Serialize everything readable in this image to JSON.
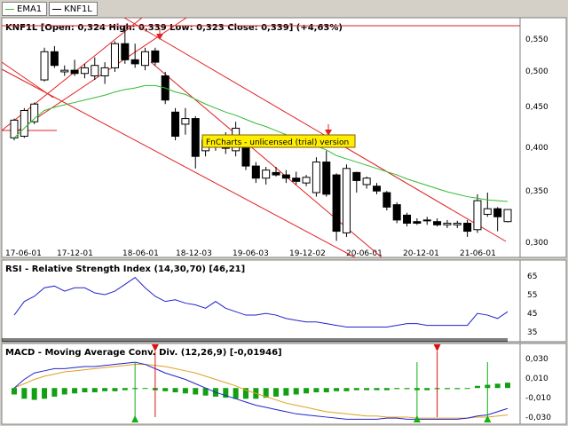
{
  "legend": [
    {
      "label": "EMA1",
      "color": "#33bb33"
    },
    {
      "label": "KNF1L",
      "color": "#000000"
    }
  ],
  "banner": "FnCharts - unlicensed (trial) version",
  "colors": {
    "ema": "#33bb33",
    "channel": "#e02020",
    "rsi": "#2222cc",
    "macd_signal": "#e0a020",
    "macd_hist": "#12a012",
    "marker_up": "#12b012",
    "marker_down": "#dd1010"
  },
  "chart_data": [
    {
      "type": "candlestick",
      "title": "KNF1L [Open: 0,324  High: 0,339  Low: 0,323  Close: 0,339] (+4,63%)",
      "ylim": [
        0.295,
        0.575
      ],
      "y_ticks": [
        "0,550",
        "0,500",
        "0,450",
        "0,400",
        "0,350",
        "0,300"
      ],
      "x_ticks": [
        "17-06-01",
        "17-12-01",
        "18-06-01",
        "18-12-03",
        "19-06-03",
        "19-12-02",
        "20-06-01",
        "20-12-01",
        "21-06-01"
      ],
      "candles": [
        {
          "o": 0.428,
          "h": 0.452,
          "l": 0.425,
          "c": 0.45
        },
        {
          "o": 0.43,
          "h": 0.465,
          "l": 0.428,
          "c": 0.462
        },
        {
          "o": 0.448,
          "h": 0.472,
          "l": 0.445,
          "c": 0.47
        },
        {
          "o": 0.5,
          "h": 0.54,
          "l": 0.498,
          "c": 0.535
        },
        {
          "o": 0.535,
          "h": 0.542,
          "l": 0.515,
          "c": 0.518
        },
        {
          "o": 0.51,
          "h": 0.518,
          "l": 0.505,
          "c": 0.512
        },
        {
          "o": 0.512,
          "h": 0.525,
          "l": 0.505,
          "c": 0.508
        },
        {
          "o": 0.508,
          "h": 0.52,
          "l": 0.502,
          "c": 0.515
        },
        {
          "o": 0.505,
          "h": 0.528,
          "l": 0.5,
          "c": 0.518
        },
        {
          "o": 0.505,
          "h": 0.522,
          "l": 0.495,
          "c": 0.515
        },
        {
          "o": 0.515,
          "h": 0.548,
          "l": 0.51,
          "c": 0.545
        },
        {
          "o": 0.545,
          "h": 0.568,
          "l": 0.52,
          "c": 0.525
        },
        {
          "o": 0.525,
          "h": 0.545,
          "l": 0.515,
          "c": 0.52
        },
        {
          "o": 0.518,
          "h": 0.54,
          "l": 0.512,
          "c": 0.535
        },
        {
          "o": 0.536,
          "h": 0.54,
          "l": 0.518,
          "c": 0.522
        },
        {
          "o": 0.505,
          "h": 0.51,
          "l": 0.47,
          "c": 0.475
        },
        {
          "o": 0.46,
          "h": 0.465,
          "l": 0.425,
          "c": 0.43
        },
        {
          "o": 0.445,
          "h": 0.465,
          "l": 0.432,
          "c": 0.452
        },
        {
          "o": 0.452,
          "h": 0.455,
          "l": 0.39,
          "c": 0.405
        },
        {
          "o": 0.412,
          "h": 0.428,
          "l": 0.405,
          "c": 0.425
        },
        {
          "o": 0.425,
          "h": 0.428,
          "l": 0.412,
          "c": 0.418
        },
        {
          "o": 0.42,
          "h": 0.435,
          "l": 0.408,
          "c": 0.415
        },
        {
          "o": 0.412,
          "h": 0.448,
          "l": 0.405,
          "c": 0.44
        },
        {
          "o": 0.422,
          "h": 0.428,
          "l": 0.388,
          "c": 0.393
        },
        {
          "o": 0.393,
          "h": 0.398,
          "l": 0.372,
          "c": 0.378
        },
        {
          "o": 0.378,
          "h": 0.392,
          "l": 0.37,
          "c": 0.388
        },
        {
          "o": 0.385,
          "h": 0.392,
          "l": 0.38,
          "c": 0.382
        },
        {
          "o": 0.382,
          "h": 0.388,
          "l": 0.372,
          "c": 0.378
        },
        {
          "o": 0.378,
          "h": 0.386,
          "l": 0.37,
          "c": 0.374
        },
        {
          "o": 0.372,
          "h": 0.382,
          "l": 0.368,
          "c": 0.379
        },
        {
          "o": 0.36,
          "h": 0.404,
          "l": 0.355,
          "c": 0.398
        },
        {
          "o": 0.398,
          "h": 0.412,
          "l": 0.355,
          "c": 0.358
        },
        {
          "o": 0.382,
          "h": 0.384,
          "l": 0.3,
          "c": 0.312
        },
        {
          "o": 0.31,
          "h": 0.395,
          "l": 0.305,
          "c": 0.39
        },
        {
          "o": 0.385,
          "h": 0.386,
          "l": 0.36,
          "c": 0.375
        },
        {
          "o": 0.37,
          "h": 0.38,
          "l": 0.365,
          "c": 0.378
        },
        {
          "o": 0.368,
          "h": 0.372,
          "l": 0.358,
          "c": 0.362
        },
        {
          "o": 0.36,
          "h": 0.362,
          "l": 0.338,
          "c": 0.342
        },
        {
          "o": 0.345,
          "h": 0.348,
          "l": 0.322,
          "c": 0.326
        },
        {
          "o": 0.332,
          "h": 0.335,
          "l": 0.318,
          "c": 0.322
        },
        {
          "o": 0.324,
          "h": 0.328,
          "l": 0.32,
          "c": 0.322
        },
        {
          "o": 0.325,
          "h": 0.33,
          "l": 0.32,
          "c": 0.326
        },
        {
          "o": 0.324,
          "h": 0.328,
          "l": 0.318,
          "c": 0.32
        },
        {
          "o": 0.32,
          "h": 0.326,
          "l": 0.316,
          "c": 0.322
        },
        {
          "o": 0.32,
          "h": 0.325,
          "l": 0.316,
          "c": 0.322
        },
        {
          "o": 0.322,
          "h": 0.326,
          "l": 0.305,
          "c": 0.312
        },
        {
          "o": 0.314,
          "h": 0.358,
          "l": 0.31,
          "c": 0.35
        },
        {
          "o": 0.333,
          "h": 0.36,
          "l": 0.33,
          "c": 0.34
        },
        {
          "o": 0.34,
          "h": 0.342,
          "l": 0.312,
          "c": 0.33
        },
        {
          "o": 0.324,
          "h": 0.339,
          "l": 0.323,
          "c": 0.339
        }
      ],
      "ema": [
        0.428,
        0.44,
        0.452,
        0.462,
        0.466,
        0.469,
        0.472,
        0.475,
        0.478,
        0.481,
        0.485,
        0.488,
        0.49,
        0.493,
        0.493,
        0.49,
        0.485,
        0.482,
        0.476,
        0.47,
        0.465,
        0.46,
        0.456,
        0.451,
        0.446,
        0.442,
        0.437,
        0.432,
        0.426,
        0.422,
        0.418,
        0.413,
        0.406,
        0.402,
        0.398,
        0.394,
        0.39,
        0.386,
        0.382,
        0.377,
        0.373,
        0.369,
        0.365,
        0.361,
        0.358,
        0.355,
        0.353,
        0.351,
        0.35,
        0.349
      ]
    },
    {
      "type": "line",
      "title": "RSI - Relative Strength Index (14,30,70) [46,21]",
      "ylim": [
        30,
        70
      ],
      "y_ticks": [
        "65",
        "55",
        "45",
        "35"
      ],
      "values": [
        44,
        52,
        55,
        60,
        61,
        58,
        60,
        60,
        57,
        56,
        58,
        62,
        66,
        60,
        55,
        52,
        53,
        51,
        50,
        48,
        52,
        48,
        46,
        44,
        44,
        45,
        44,
        42,
        41,
        40,
        40,
        39,
        38,
        37,
        37,
        37,
        37,
        37,
        38,
        39,
        39,
        38,
        38,
        38,
        38,
        38,
        45,
        44,
        42,
        46
      ]
    },
    {
      "type": "bar",
      "title": "MACD - Moving Average Conv. Div. (12,26,9) [-0,01946]",
      "ylim": [
        -0.032,
        0.034
      ],
      "y_ticks": [
        "0,030",
        "0,010",
        "-0,010",
        "-0,030"
      ],
      "macd": [
        0.0,
        0.008,
        0.014,
        0.016,
        0.018,
        0.018,
        0.019,
        0.02,
        0.02,
        0.021,
        0.022,
        0.023,
        0.024,
        0.022,
        0.018,
        0.014,
        0.011,
        0.008,
        0.004,
        0.0,
        -0.004,
        -0.007,
        -0.01,
        -0.013,
        -0.016,
        -0.018,
        -0.02,
        -0.022,
        -0.024,
        -0.025,
        -0.026,
        -0.027,
        -0.028,
        -0.029,
        -0.029,
        -0.029,
        -0.029,
        -0.028,
        -0.028,
        -0.029,
        -0.029,
        -0.029,
        -0.029,
        -0.029,
        -0.029,
        -0.028,
        -0.026,
        -0.025,
        -0.022,
        -0.019
      ],
      "signal": [
        0.0,
        0.004,
        0.008,
        0.011,
        0.013,
        0.015,
        0.016,
        0.017,
        0.018,
        0.019,
        0.02,
        0.021,
        0.022,
        0.022,
        0.021,
        0.02,
        0.018,
        0.016,
        0.014,
        0.011,
        0.008,
        0.005,
        0.002,
        -0.002,
        -0.005,
        -0.008,
        -0.011,
        -0.014,
        -0.016,
        -0.018,
        -0.02,
        -0.022,
        -0.023,
        -0.024,
        -0.025,
        -0.026,
        -0.026,
        -0.027,
        -0.027,
        -0.027,
        -0.028,
        -0.028,
        -0.028,
        -0.028,
        -0.028,
        -0.028,
        -0.027,
        -0.027,
        -0.026,
        -0.025
      ],
      "histogram": [
        -0.006,
        -0.01,
        -0.011,
        -0.01,
        -0.008,
        -0.006,
        -0.005,
        -0.004,
        -0.004,
        -0.003,
        -0.003,
        -0.002,
        -0.001,
        0.0,
        -0.002,
        -0.003,
        -0.004,
        -0.005,
        -0.006,
        -0.007,
        -0.008,
        -0.009,
        -0.01,
        -0.01,
        -0.01,
        -0.009,
        -0.008,
        -0.007,
        -0.006,
        -0.005,
        -0.004,
        -0.004,
        -0.003,
        -0.003,
        -0.002,
        -0.002,
        -0.002,
        -0.002,
        -0.001,
        -0.001,
        -0.002,
        -0.002,
        -0.001,
        -0.001,
        -0.001,
        0.0,
        0.002,
        0.003,
        0.004,
        0.005
      ],
      "markers_up": [
        12,
        40,
        47
      ],
      "markers_down": [
        14,
        42
      ]
    }
  ]
}
